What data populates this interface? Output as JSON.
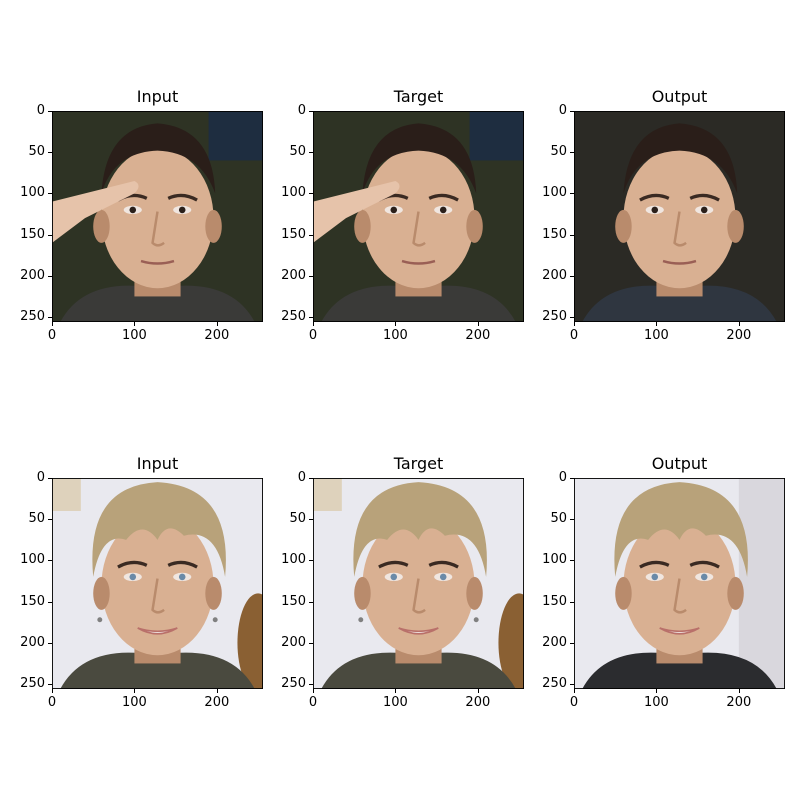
{
  "rows": [
    {
      "panels": [
        {
          "title": "Input",
          "subject": "man-saluting",
          "variant": "input"
        },
        {
          "title": "Target",
          "subject": "man-saluting",
          "variant": "target"
        },
        {
          "title": "Output",
          "subject": "man-saluting",
          "variant": "output"
        }
      ]
    },
    {
      "panels": [
        {
          "title": "Input",
          "subject": "man-blond-hair",
          "variant": "input"
        },
        {
          "title": "Target",
          "subject": "man-blond-hair",
          "variant": "target"
        },
        {
          "title": "Output",
          "subject": "man-blond-hair",
          "variant": "output"
        }
      ]
    }
  ],
  "axes": {
    "x_ticks": [
      "0",
      "100",
      "200"
    ],
    "y_ticks": [
      "0",
      "50",
      "100",
      "150",
      "200",
      "250"
    ],
    "x_tick_values": [
      0,
      100,
      200
    ],
    "y_tick_values": [
      0,
      50,
      100,
      150,
      200,
      250
    ],
    "image_size": 256
  },
  "colors": {
    "skin": "#d9b092",
    "skin_shadow": "#b98b6c",
    "dark_hair": "#2a1e19",
    "blond_hair": "#b8a27a",
    "background_foliage": "#2e3324",
    "background_light": "#e9e9ef",
    "background_output_dark": "#2b2a25"
  }
}
